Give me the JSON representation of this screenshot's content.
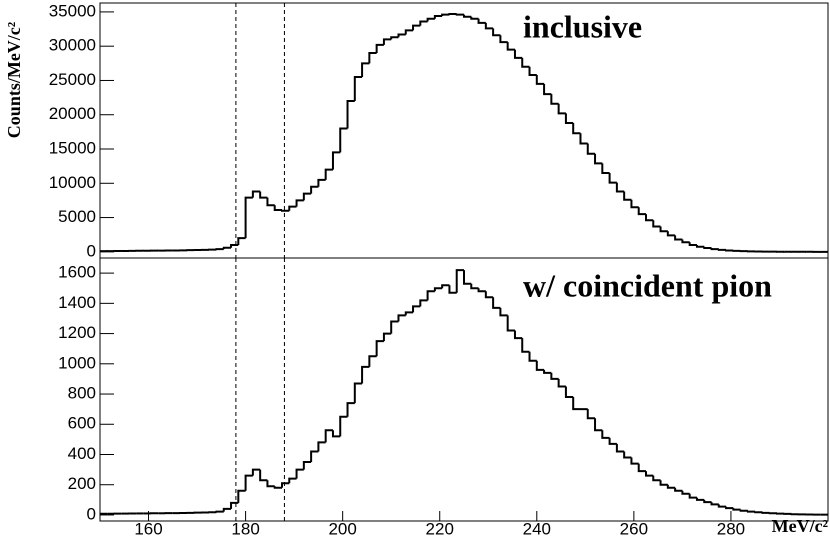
{
  "chart_data": [
    {
      "type": "histogram",
      "title": "inclusive",
      "ylabel": "Counts/MeV/c²",
      "bins": [
        150,
        151.5,
        153,
        154.5,
        156,
        157.5,
        159,
        160.5,
        162,
        163.5,
        165,
        166.5,
        168,
        169.5,
        171,
        172.5,
        174,
        175.5,
        177,
        178.5,
        180,
        181.5,
        183,
        184.5,
        186,
        187.5,
        189,
        190.5,
        192,
        193.5,
        195,
        196.5,
        198,
        199.5,
        201,
        202.5,
        204,
        205.5,
        207,
        208.5,
        210,
        211.5,
        213,
        214.5,
        216,
        217.5,
        219,
        220.5,
        222,
        223.5,
        225,
        226.5,
        228,
        229.5,
        231,
        232.5,
        234,
        235.5,
        237,
        238.5,
        240,
        241.5,
        243,
        244.5,
        246,
        247.5,
        249,
        250.5,
        252,
        253.5,
        255,
        256.5,
        258,
        259.5,
        261,
        262.5,
        264,
        265.5,
        267,
        268.5,
        270,
        271.5,
        273,
        274.5,
        276,
        277.5,
        279,
        280.5,
        282,
        283.5,
        285,
        286.5,
        288,
        289.5,
        291,
        292.5,
        294,
        295.5,
        297,
        298.5,
        300
      ],
      "values": [
        100,
        110,
        120,
        130,
        140,
        150,
        160,
        170,
        180,
        190,
        200,
        220,
        240,
        260,
        290,
        330,
        400,
        600,
        1000,
        2000,
        7900,
        8800,
        7900,
        6800,
        6100,
        6000,
        6600,
        7500,
        8500,
        9500,
        10500,
        12000,
        14500,
        18000,
        22000,
        25500,
        27500,
        29000,
        30200,
        31000,
        31300,
        31700,
        32300,
        33000,
        33600,
        34000,
        34400,
        34600,
        34700,
        34600,
        34300,
        34000,
        33400,
        32600,
        31600,
        30600,
        29500,
        28300,
        27000,
        25800,
        24500,
        23000,
        21600,
        20200,
        18800,
        17300,
        15800,
        14300,
        12900,
        11500,
        10100,
        8800,
        7600,
        6500,
        5500,
        4600,
        3700,
        3000,
        2400,
        1800,
        1400,
        1000,
        750,
        550,
        400,
        280,
        200,
        140,
        100,
        70,
        50,
        35,
        25,
        15,
        10,
        8,
        5,
        3,
        2,
        1
      ],
      "color": "#000000",
      "xlim": [
        150,
        300
      ],
      "ylim": [
        -900,
        36300
      ],
      "yticks": [
        0,
        5000,
        10000,
        15000,
        20000,
        25000,
        30000,
        35000
      ],
      "vlines": [
        178,
        188
      ]
    },
    {
      "type": "histogram",
      "title": "w/ coincident pion",
      "xlabel": "MeV/c²",
      "bins": [
        150,
        151.5,
        153,
        154.5,
        156,
        157.5,
        159,
        160.5,
        162,
        163.5,
        165,
        166.5,
        168,
        169.5,
        171,
        172.5,
        174,
        175.5,
        177,
        178.5,
        180,
        181.5,
        183,
        184.5,
        186,
        187.5,
        189,
        190.5,
        192,
        193.5,
        195,
        196.5,
        198,
        199.5,
        201,
        202.5,
        204,
        205.5,
        207,
        208.5,
        210,
        211.5,
        213,
        214.5,
        216,
        217.5,
        219,
        220.5,
        222,
        223.5,
        225,
        226.5,
        228,
        229.5,
        231,
        232.5,
        234,
        235.5,
        237,
        238.5,
        240,
        241.5,
        243,
        244.5,
        246,
        247.5,
        249,
        250.5,
        252,
        253.5,
        255,
        256.5,
        258,
        259.5,
        261,
        262.5,
        264,
        265.5,
        267,
        268.5,
        270,
        271.5,
        273,
        274.5,
        276,
        277.5,
        279,
        280.5,
        282,
        283.5,
        285,
        286.5,
        288,
        289.5,
        291,
        292.5,
        294,
        295.5,
        297,
        298.5,
        300
      ],
      "values": [
        8,
        8,
        9,
        9,
        10,
        10,
        10,
        11,
        11,
        12,
        12,
        13,
        14,
        15,
        16,
        18,
        22,
        40,
        80,
        160,
        260,
        300,
        230,
        190,
        180,
        210,
        240,
        300,
        350,
        420,
        480,
        560,
        520,
        650,
        740,
        870,
        980,
        1050,
        1150,
        1200,
        1280,
        1320,
        1340,
        1380,
        1420,
        1480,
        1500,
        1520,
        1470,
        1620,
        1530,
        1500,
        1480,
        1440,
        1370,
        1320,
        1220,
        1170,
        1080,
        1020,
        960,
        940,
        900,
        850,
        780,
        700,
        700,
        640,
        560,
        510,
        470,
        420,
        380,
        340,
        290,
        260,
        230,
        200,
        180,
        160,
        140,
        115,
        100,
        85,
        70,
        55,
        45,
        35,
        28,
        22,
        18,
        14,
        11,
        9,
        7,
        5,
        4,
        3,
        2,
        2
      ],
      "color": "#000000",
      "xlim": [
        150,
        300
      ],
      "ylim": [
        -40,
        1700
      ],
      "xticks": [
        160,
        180,
        200,
        220,
        240,
        260,
        280
      ],
      "yticks": [
        0,
        200,
        400,
        600,
        800,
        1000,
        1200,
        1400,
        1600
      ],
      "vlines": [
        178,
        188
      ]
    }
  ]
}
